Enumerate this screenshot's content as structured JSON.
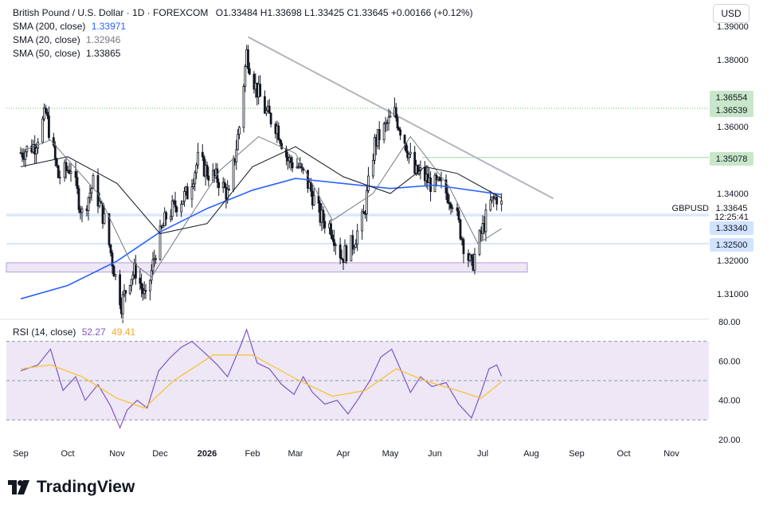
{
  "header": {
    "symbol_title": "British Pound / U.S. Dollar · 1D · FOREXCOM",
    "ohlc": "O1.33484  H1.33698  L1.33425  C1.33645  +0.00166 (+0.12%)",
    "sma200_label": "SMA (200, close)",
    "sma200_value": "1.33971",
    "sma20_label": "SMA (20, close)",
    "sma20_value": "1.32946",
    "sma50_label": "SMA (50, close)",
    "sma50_value": "1.33865"
  },
  "currency_button": "USD",
  "rsi_header": {
    "label": "RSI (14, close)",
    "rsi_value": "52.27",
    "ma_value": "49.41"
  },
  "colors": {
    "candle": "#131722",
    "sma200": "#2962ff",
    "sma20": "#787b86",
    "sma50": "#131722",
    "trendline": "#b2b5be",
    "support_zone": "#ede7f6",
    "rsi_line": "#7e57c2",
    "rsi_ma": "#fbc02d",
    "rsi_band": "#ede7f6",
    "tag_green": "#c8e6c9",
    "tag_blue": "#d1e3ff"
  },
  "price_tags": [
    {
      "text": "1.36554",
      "kind": "green"
    },
    {
      "text": "1.36539",
      "kind": "green"
    },
    {
      "text": "1.35078",
      "kind": "green"
    },
    {
      "text": "1.33340",
      "kind": "blue"
    },
    {
      "text": "1.32500",
      "kind": "blue"
    }
  ],
  "last_price": {
    "symbol": "GBPUSD",
    "price": "1.33645",
    "countdown": "12:25:41"
  },
  "footer": {
    "brand": "TradingView"
  },
  "chart_data": [
    {
      "type": "candlestick",
      "title": "British Pound / U.S. Dollar · 1D · FOREXCOM",
      "x_tick_labels": [
        "Sep",
        "Oct",
        "Nov",
        "Dec",
        "2026",
        "Feb",
        "Mar",
        "Apr",
        "May",
        "Jun",
        "Jul",
        "Aug",
        "Sep",
        "Oct",
        "Nov"
      ],
      "y_tick_labels": [
        "1.39000",
        "1.38000",
        "1.36000",
        "1.34000",
        "1.32000",
        "1.31000"
      ],
      "ylim": [
        1.3075,
        1.3915
      ],
      "grid": false,
      "horizontal_levels": [
        1.36554,
        1.36539,
        1.35078,
        1.3334,
        1.325
      ],
      "support_zone": [
        1.3165,
        1.3193
      ],
      "trendline": [
        [
          "Jan 29, 2026",
          1.3868
        ],
        [
          "Aug 16, 2026",
          1.3385
        ]
      ],
      "price_path": [
        [
          "2025-09-01",
          1.3522
        ],
        [
          "2025-09-10",
          1.3545
        ],
        [
          "2025-09-17",
          1.364
        ],
        [
          "2025-09-25",
          1.345
        ],
        [
          "2025-10-03",
          1.348
        ],
        [
          "2025-10-10",
          1.334
        ],
        [
          "2025-10-17",
          1.343
        ],
        [
          "2025-10-24",
          1.332
        ],
        [
          "2025-10-31",
          1.315
        ],
        [
          "2025-11-04",
          1.307
        ],
        [
          "2025-11-10",
          1.315
        ],
        [
          "2025-11-14",
          1.317
        ],
        [
          "2025-11-21",
          1.308
        ],
        [
          "2025-11-28",
          1.323
        ],
        [
          "2025-12-05",
          1.333
        ],
        [
          "2025-12-12",
          1.337
        ],
        [
          "2025-12-19",
          1.34
        ],
        [
          "2025-12-26",
          1.35
        ],
        [
          "2026-01-02",
          1.346
        ],
        [
          "2026-01-09",
          1.344
        ],
        [
          "2026-01-16",
          1.339
        ],
        [
          "2026-01-23",
          1.36
        ],
        [
          "2026-01-28",
          1.382
        ],
        [
          "2026-02-03",
          1.372
        ],
        [
          "2026-02-10",
          1.364
        ],
        [
          "2026-02-17",
          1.36
        ],
        [
          "2026-02-24",
          1.35
        ],
        [
          "2026-03-03",
          1.348
        ],
        [
          "2026-03-10",
          1.342
        ],
        [
          "2026-03-17",
          1.333
        ],
        [
          "2026-03-24",
          1.33
        ],
        [
          "2026-03-31",
          1.321
        ],
        [
          "2026-04-07",
          1.325
        ],
        [
          "2026-04-14",
          1.333
        ],
        [
          "2026-04-21",
          1.355
        ],
        [
          "2026-04-28",
          1.36
        ],
        [
          "2026-05-04",
          1.364
        ],
        [
          "2026-05-11",
          1.356
        ],
        [
          "2026-05-18",
          1.346
        ],
        [
          "2026-05-22",
          1.346
        ],
        [
          "2026-05-29",
          1.343
        ],
        [
          "2026-06-05",
          1.342
        ],
        [
          "2026-06-12",
          1.338
        ],
        [
          "2026-06-19",
          1.325
        ],
        [
          "2026-06-24",
          1.318
        ],
        [
          "2026-06-30",
          1.328
        ],
        [
          "2026-07-06",
          1.337
        ],
        [
          "2026-07-10",
          1.339
        ],
        [
          "2026-07-13",
          1.3365
        ]
      ],
      "series": [
        {
          "name": "SMA (200, close)",
          "last": 1.33971,
          "points": [
            [
              "2025-09-01",
              1.3085
            ],
            [
              "2025-10-01",
              1.3125
            ],
            [
              "2025-11-01",
              1.3198
            ],
            [
              "2025-12-01",
              1.3285
            ],
            [
              "2026-01-01",
              1.3355
            ],
            [
              "2026-02-01",
              1.341
            ],
            [
              "2026-03-01",
              1.3445
            ],
            [
              "2026-04-01",
              1.343
            ],
            [
              "2026-05-01",
              1.3415
            ],
            [
              "2026-06-01",
              1.3425
            ],
            [
              "2026-07-13",
              1.3397
            ]
          ]
        },
        {
          "name": "SMA (20, close)",
          "last": 1.32946,
          "points": [
            [
              "2025-09-01",
              1.3525
            ],
            [
              "2025-09-20",
              1.356
            ],
            [
              "2025-10-20",
              1.34
            ],
            [
              "2025-11-10",
              1.32
            ],
            [
              "2025-11-25",
              1.315
            ],
            [
              "2025-12-15",
              1.329
            ],
            [
              "2026-01-10",
              1.347
            ],
            [
              "2026-02-05",
              1.357
            ],
            [
              "2026-03-01",
              1.352
            ],
            [
              "2026-03-25",
              1.332
            ],
            [
              "2026-04-20",
              1.34
            ],
            [
              "2026-05-15",
              1.357
            ],
            [
              "2026-06-10",
              1.342
            ],
            [
              "2026-06-28",
              1.325
            ],
            [
              "2026-07-13",
              1.3295
            ]
          ]
        },
        {
          "name": "SMA (50, close)",
          "last": 1.33865,
          "points": [
            [
              "2025-09-01",
              1.348
            ],
            [
              "2025-10-01",
              1.351
            ],
            [
              "2025-11-01",
              1.343
            ],
            [
              "2025-12-01",
              1.328
            ],
            [
              "2026-01-01",
              1.331
            ],
            [
              "2026-02-01",
              1.348
            ],
            [
              "2026-03-01",
              1.354
            ],
            [
              "2026-04-01",
              1.345
            ],
            [
              "2026-05-01",
              1.34
            ],
            [
              "2026-05-25",
              1.348
            ],
            [
              "2026-06-15",
              1.346
            ],
            [
              "2026-07-13",
              1.3387
            ]
          ]
        }
      ]
    },
    {
      "type": "line",
      "title": "RSI (14, close)",
      "y_tick_labels": [
        "80.00",
        "60.00",
        "40.00",
        "20.00"
      ],
      "ylim": [
        19,
        81
      ],
      "band": [
        30,
        70
      ],
      "series": [
        {
          "name": "RSI",
          "last": 52.27,
          "points": [
            [
              "2025-09-01",
              55
            ],
            [
              "2025-09-12",
              58
            ],
            [
              "2025-09-20",
              66
            ],
            [
              "2025-09-28",
              45
            ],
            [
              "2025-10-06",
              52
            ],
            [
              "2025-10-12",
              40
            ],
            [
              "2025-10-20",
              48
            ],
            [
              "2025-10-28",
              37
            ],
            [
              "2025-11-03",
              26
            ],
            [
              "2025-11-08",
              35
            ],
            [
              "2025-11-15",
              40
            ],
            [
              "2025-11-22",
              36
            ],
            [
              "2025-11-30",
              55
            ],
            [
              "2025-12-08",
              62
            ],
            [
              "2025-12-15",
              67
            ],
            [
              "2025-12-22",
              70
            ],
            [
              "2026-01-01",
              63
            ],
            [
              "2026-01-08",
              58
            ],
            [
              "2026-01-15",
              52
            ],
            [
              "2026-01-24",
              68
            ],
            [
              "2026-01-28",
              76
            ],
            [
              "2026-02-04",
              59
            ],
            [
              "2026-02-12",
              56
            ],
            [
              "2026-02-20",
              48
            ],
            [
              "2026-02-28",
              43
            ],
            [
              "2026-03-06",
              52
            ],
            [
              "2026-03-12",
              44
            ],
            [
              "2026-03-20",
              38
            ],
            [
              "2026-03-28",
              40
            ],
            [
              "2026-04-04",
              33
            ],
            [
              "2026-04-10",
              40
            ],
            [
              "2026-04-18",
              50
            ],
            [
              "2026-04-25",
              62
            ],
            [
              "2026-05-02",
              66
            ],
            [
              "2026-05-08",
              56
            ],
            [
              "2026-05-15",
              44
            ],
            [
              "2026-05-22",
              52
            ],
            [
              "2026-05-30",
              47
            ],
            [
              "2026-06-08",
              49
            ],
            [
              "2026-06-16",
              38
            ],
            [
              "2026-06-24",
              31
            ],
            [
              "2026-06-30",
              44
            ],
            [
              "2026-07-05",
              56
            ],
            [
              "2026-07-10",
              58
            ],
            [
              "2026-07-13",
              52.27
            ]
          ]
        },
        {
          "name": "RSI-based MA",
          "last": 49.41,
          "points": [
            [
              "2025-09-01",
              56
            ],
            [
              "2025-09-20",
              58
            ],
            [
              "2025-10-10",
              52
            ],
            [
              "2025-11-01",
              41
            ],
            [
              "2025-11-20",
              36
            ],
            [
              "2025-12-10",
              50
            ],
            [
              "2026-01-05",
              63
            ],
            [
              "2026-02-01",
              63
            ],
            [
              "2026-03-01",
              51
            ],
            [
              "2026-03-25",
              42
            ],
            [
              "2026-04-15",
              45
            ],
            [
              "2026-05-05",
              56
            ],
            [
              "2026-05-25",
              50
            ],
            [
              "2026-06-15",
              45
            ],
            [
              "2026-06-30",
              41
            ],
            [
              "2026-07-13",
              49.41
            ]
          ]
        }
      ]
    }
  ]
}
